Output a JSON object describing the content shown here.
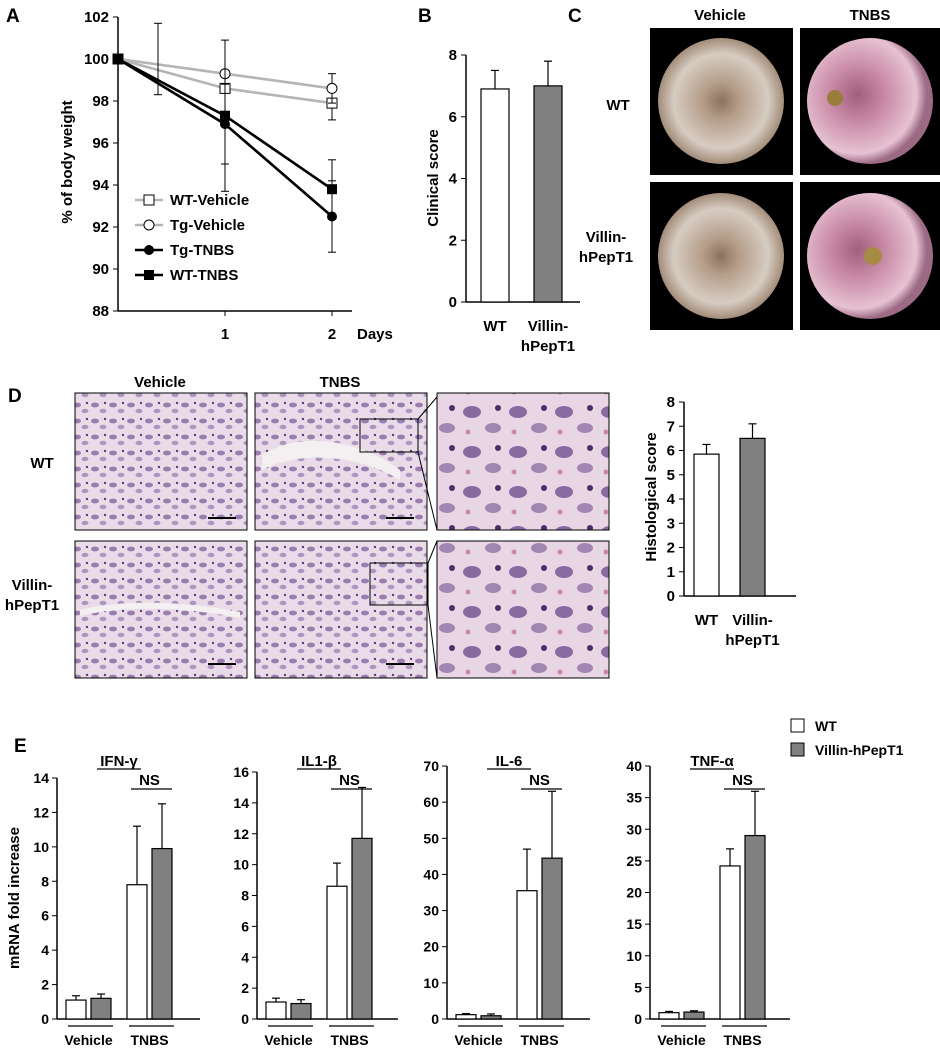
{
  "panels": {
    "A": {
      "letter": "A",
      "type": "line",
      "ylabel": "% of body weight",
      "xunit": "Days",
      "ylim": [
        88,
        102
      ],
      "yticks": [
        "88",
        "90",
        "92",
        "94",
        "96",
        "98",
        "100",
        "102"
      ],
      "xticks": [
        "1",
        "2"
      ],
      "series": [
        {
          "name": "WT-Vehicle",
          "marker": "open-square",
          "color": "#b5b5b5",
          "x": [
            0,
            1,
            2
          ],
          "y": [
            100,
            98.6,
            97.9
          ],
          "err": [
            0,
            0,
            0.8
          ]
        },
        {
          "name": "Tg-Vehicle",
          "marker": "open-circle",
          "color": "#b5b5b5",
          "x": [
            0,
            1,
            2
          ],
          "y": [
            100,
            99.3,
            98.6
          ],
          "err": [
            0,
            0,
            0.7
          ]
        },
        {
          "name": "Tg-TNBS",
          "marker": "filled-circle",
          "color": "#000000",
          "x": [
            0,
            1,
            2
          ],
          "y": [
            100,
            96.9,
            92.5
          ],
          "err": [
            0,
            1.9,
            1.7
          ]
        },
        {
          "name": "WT-TNBS",
          "marker": "filled-square",
          "color": "#000000",
          "x": [
            0,
            1,
            2
          ],
          "y": [
            100,
            97.3,
            93.8
          ],
          "err": [
            1.7,
            3.6,
            1.4
          ]
        }
      ]
    },
    "B": {
      "letter": "B",
      "type": "bar",
      "ylabel": "Clinical score",
      "ylim": [
        0,
        8
      ],
      "yticks": [
        "0",
        "2",
        "4",
        "6",
        "8"
      ],
      "categories": [
        "WT",
        "Villin-hPepT1"
      ],
      "cat_lines": [
        [
          "WT"
        ],
        [
          "Villin-",
          "hPepT1"
        ]
      ],
      "values": [
        6.9,
        7.0
      ],
      "errors": [
        0.6,
        0.8
      ],
      "colors": [
        "#ffffff",
        "#808080"
      ]
    },
    "C": {
      "letter": "C",
      "col_headers": [
        "Vehicle",
        "TNBS"
      ],
      "row_labels": [
        [
          "WT"
        ],
        [
          "Villin-",
          "hPepT1"
        ]
      ]
    },
    "D": {
      "letter": "D",
      "col_headers": [
        "Vehicle",
        "TNBS"
      ],
      "row_labels": [
        [
          "WT"
        ],
        [
          "Villin-",
          "hPepT1"
        ]
      ],
      "chart": {
        "type": "bar",
        "ylabel": "Histological score",
        "ylim": [
          0,
          8
        ],
        "yticks": [
          "0",
          "1",
          "2",
          "3",
          "4",
          "5",
          "6",
          "7",
          "8"
        ],
        "cat_lines": [
          [
            "WT"
          ],
          [
            "Villin-",
            "hPepT1"
          ]
        ],
        "categories": [
          "WT",
          "Villin-hPepT1"
        ],
        "values": [
          5.85,
          6.5
        ],
        "errors": [
          0.4,
          0.6
        ],
        "colors": [
          "#ffffff",
          "#808080"
        ]
      }
    },
    "E": {
      "letter": "E",
      "ylabel": "mRNA fold increase",
      "legend": [
        {
          "name": "WT",
          "color": "#ffffff"
        },
        {
          "name": "Villin-hPepT1",
          "color": "#808080"
        }
      ],
      "group_labels": [
        "Vehicle",
        "TNBS"
      ],
      "ns": "NS",
      "charts": [
        {
          "title": "IFN-γ",
          "ylim": [
            0,
            14
          ],
          "yticks": [
            "0",
            "2",
            "4",
            "6",
            "8",
            "10",
            "12",
            "14"
          ],
          "values": {
            "WT": [
              1.1,
              7.8
            ],
            "Villin-hPepT1": [
              1.2,
              9.9
            ]
          },
          "errors": {
            "WT": [
              0.25,
              3.4
            ],
            "Villin-hPepT1": [
              0.25,
              2.6
            ]
          }
        },
        {
          "title": "IL1-β",
          "ylim": [
            0,
            16
          ],
          "yticks": [
            "0",
            "2",
            "4",
            "6",
            "8",
            "10",
            "12",
            "14",
            "16"
          ],
          "values": {
            "WT": [
              1.1,
              8.6
            ],
            "Villin-hPepT1": [
              1.0,
              11.7
            ]
          },
          "errors": {
            "WT": [
              0.25,
              1.5
            ],
            "Villin-hPepT1": [
              0.25,
              3.3
            ]
          }
        },
        {
          "title": "IL-6",
          "ylim": [
            0,
            70
          ],
          "yticks": [
            "0",
            "10",
            "20",
            "30",
            "40",
            "50",
            "60",
            "70"
          ],
          "values": {
            "WT": [
              1.2,
              35.5
            ],
            "Villin-hPepT1": [
              0.9,
              44.5
            ]
          },
          "errors": {
            "WT": [
              0.3,
              11.5
            ],
            "Villin-hPepT1": [
              0.5,
              18.5
            ]
          }
        },
        {
          "title": "TNF-α",
          "ylim": [
            0,
            40
          ],
          "yticks": [
            "0",
            "5",
            "10",
            "15",
            "20",
            "25",
            "30",
            "35",
            "40"
          ],
          "values": {
            "WT": [
              1.0,
              24.2
            ],
            "Villin-hPepT1": [
              1.1,
              29.0
            ]
          },
          "errors": {
            "WT": [
              0.2,
              2.7
            ],
            "Villin-hPepT1": [
              0.2,
              7.0
            ]
          }
        }
      ]
    }
  },
  "colors": {
    "tissue_light": "#e8d6e6",
    "tissue_dark": "#7c5c9a",
    "endo_pale": "#b9a593",
    "endo_pink": "#c08aa6"
  }
}
